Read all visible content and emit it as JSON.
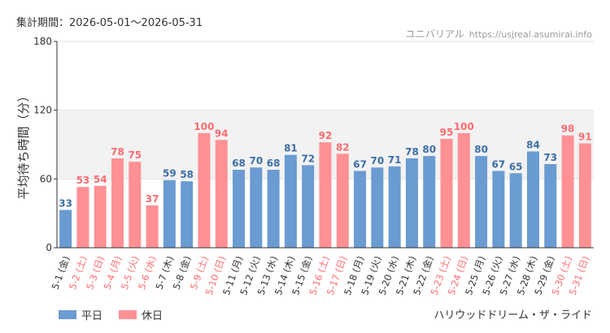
{
  "header": {
    "period": "集計期間：2026-05-01～2026-05-31",
    "brand": "ユニバリアル",
    "url": "https://usjreal.asumirai.info"
  },
  "colors": {
    "weekday": "#6a9bd1",
    "holiday": "#ff9094",
    "weekday_text": "#3d6fa6",
    "holiday_text": "#ff6b70",
    "axis_text": "#333333"
  },
  "legend": {
    "weekday": "平日",
    "holiday": "休日"
  },
  "attraction": "ハリウッドドリーム・ザ・ライド",
  "chart_data": {
    "type": "bar",
    "ylabel": "平均待ち時間（分）",
    "ylim": [
      0,
      180
    ],
    "yticks": [
      0,
      60,
      120,
      180
    ],
    "shaded_band": [
      60,
      120
    ],
    "categories": [
      "5-1 (金)",
      "5-2 (土)",
      "5-3 (日)",
      "5-4 (月)",
      "5-5 (火)",
      "5-6 (水)",
      "5-7 (木)",
      "5-8 (金)",
      "5-9 (土)",
      "5-10 (日)",
      "5-11 (月)",
      "5-12 (火)",
      "5-13 (水)",
      "5-14 (木)",
      "5-15 (金)",
      "5-16 (土)",
      "5-17 (日)",
      "5-18 (月)",
      "5-19 (火)",
      "5-20 (水)",
      "5-21 (木)",
      "5-22 (金)",
      "5-23 (土)",
      "5-24 (日)",
      "5-25 (月)",
      "5-26 (火)",
      "5-27 (水)",
      "5-28 (木)",
      "5-29 (金)",
      "5-30 (土)",
      "5-31 (日)"
    ],
    "values": [
      33,
      53,
      54,
      78,
      75,
      37,
      59,
      58,
      100,
      94,
      68,
      70,
      68,
      81,
      72,
      92,
      82,
      67,
      70,
      71,
      78,
      80,
      95,
      100,
      80,
      67,
      65,
      84,
      73,
      98,
      91
    ],
    "day_type": [
      "平日",
      "休日",
      "休日",
      "休日",
      "休日",
      "休日",
      "平日",
      "平日",
      "休日",
      "休日",
      "平日",
      "平日",
      "平日",
      "平日",
      "平日",
      "休日",
      "休日",
      "平日",
      "平日",
      "平日",
      "平日",
      "平日",
      "休日",
      "休日",
      "平日",
      "平日",
      "平日",
      "平日",
      "平日",
      "休日",
      "休日"
    ]
  }
}
